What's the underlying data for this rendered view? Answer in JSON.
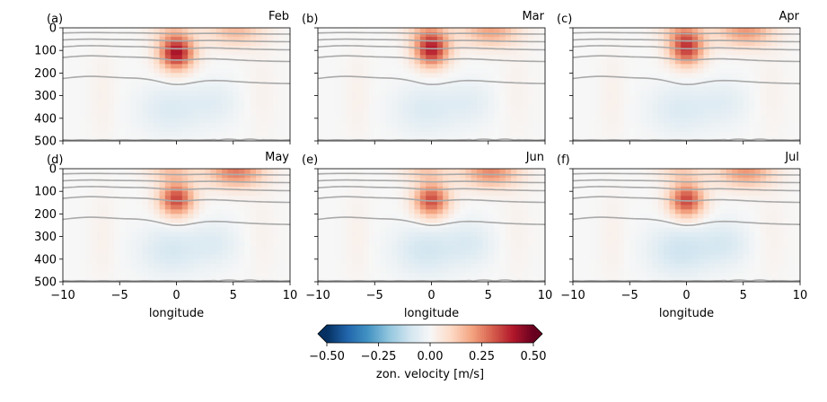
{
  "chart_data": {
    "type": "heatmap",
    "panels": [
      {
        "label": "(a)",
        "month": "Feb",
        "core_strength": 0.42,
        "core_depth": 110,
        "side_strength": 0.16,
        "neg_strength": 0.07
      },
      {
        "label": "(b)",
        "month": "Mar",
        "core_strength": 0.4,
        "core_depth": 95,
        "side_strength": 0.2,
        "neg_strength": 0.07
      },
      {
        "label": "(c)",
        "month": "Apr",
        "core_strength": 0.36,
        "core_depth": 90,
        "side_strength": 0.22,
        "neg_strength": 0.07
      },
      {
        "label": "(d)",
        "month": "May",
        "core_strength": 0.34,
        "core_depth": 135,
        "side_strength": 0.26,
        "neg_strength": 0.08
      },
      {
        "label": "(e)",
        "month": "Jun",
        "core_strength": 0.33,
        "core_depth": 140,
        "side_strength": 0.24,
        "neg_strength": 0.09
      },
      {
        "label": "(f)",
        "month": "Jul",
        "core_strength": 0.34,
        "core_depth": 140,
        "side_strength": 0.22,
        "neg_strength": 0.1
      }
    ],
    "x_axis": {
      "label": "longitude",
      "lim": [
        -10,
        10
      ],
      "ticks": [
        -10,
        -5,
        0,
        5,
        10
      ],
      "tick_labels": [
        "−10",
        "−5",
        "0",
        "5",
        "10"
      ]
    },
    "y_axis": {
      "lim": [
        0,
        500
      ],
      "inverted": true,
      "ticks": [
        0,
        100,
        200,
        300,
        400,
        500
      ],
      "tick_labels": [
        "0",
        "100",
        "200",
        "300",
        "400",
        "500"
      ]
    },
    "colorbar": {
      "label": "zon. velocity [m/s]",
      "range": [
        -0.5,
        0.5
      ],
      "ticks": [
        -0.5,
        -0.25,
        0,
        0.25,
        0.5
      ],
      "tick_labels": [
        "−0.50",
        "−0.25",
        "0.00",
        "0.25",
        "0.50"
      ],
      "colormap": "RdBu_r",
      "extend": "both"
    },
    "contour_color": "#a9a9a9"
  }
}
